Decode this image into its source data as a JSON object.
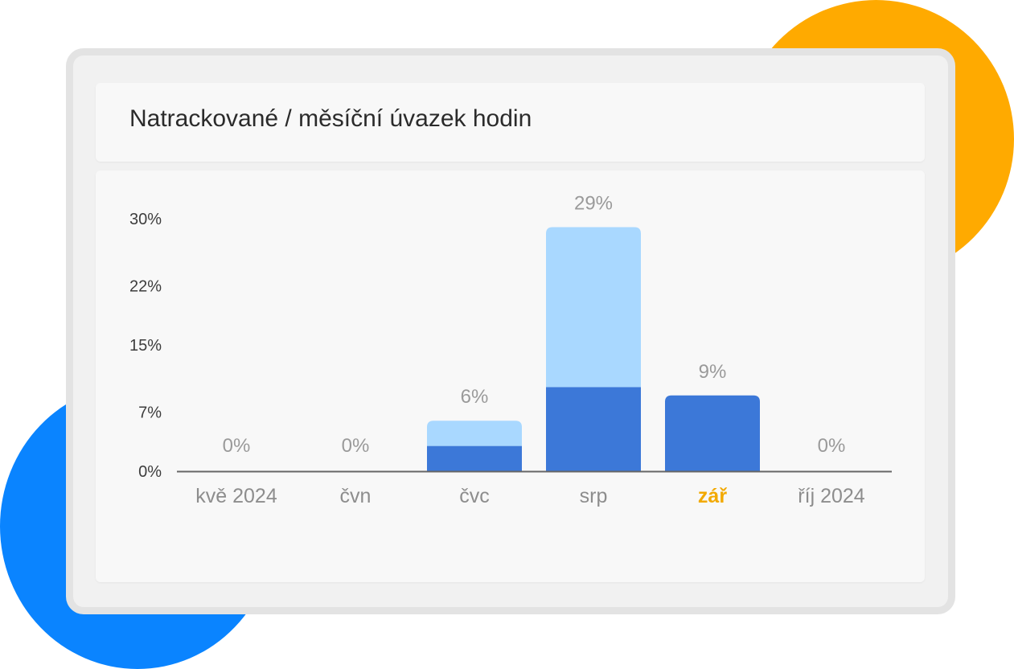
{
  "title": "Natrackované / měsíční úvazek hodin",
  "colors": {
    "orange_blob": "#FFAA00",
    "blue_blob": "#0A84FF",
    "bar_dark": "#3C78D8",
    "bar_light": "#A9D8FF",
    "highlight": "#F2A900",
    "axis": "#666666"
  },
  "chart_data": {
    "type": "bar",
    "stacked": true,
    "title": "Natrackované / měsíční úvazek hodin",
    "categories": [
      "kvě 2024",
      "čvn",
      "čvc",
      "srp",
      "zář",
      "říj 2024"
    ],
    "highlighted_category": "zář",
    "series": [
      {
        "values": [
          0,
          0,
          3,
          10,
          9,
          0
        ]
      },
      {
        "values": [
          0,
          0,
          3,
          19,
          0,
          0
        ]
      }
    ],
    "totals": [
      0,
      0,
      6,
      29,
      9,
      0
    ],
    "total_labels": [
      "0%",
      "0%",
      "6%",
      "29%",
      "9%",
      "0%"
    ],
    "yticks": [
      0,
      7,
      15,
      22,
      30
    ],
    "ytick_labels": [
      "0%",
      "7%",
      "15%",
      "22%",
      "30%"
    ],
    "ylim": [
      0,
      30
    ],
    "xlabel": "",
    "ylabel": "",
    "grid": false,
    "legend": "none"
  }
}
